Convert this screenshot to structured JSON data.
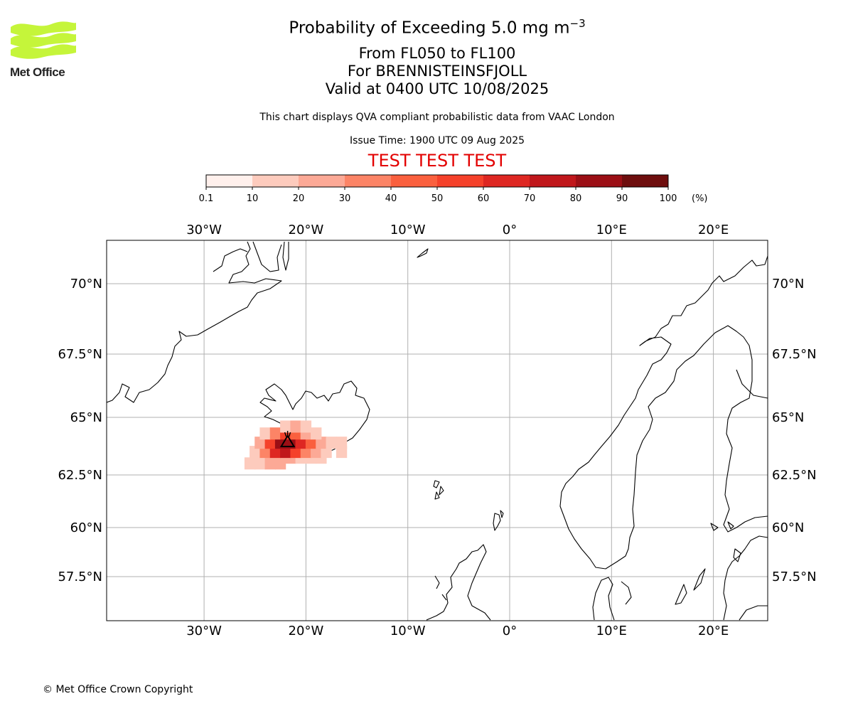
{
  "logo": {
    "text": "Met Office",
    "color": "#c5f53a"
  },
  "header": {
    "title_prefix": "Probability of Exceeding 5.0 mg m",
    "title_sup": "−3",
    "levels": "From FL050 to FL100",
    "volcano": "For BRENNISTEINSFJOLL",
    "valid": "Valid at 0400 UTC 10/08/2025",
    "description": "This chart displays QVA compliant probabilistic data from VAAC London",
    "issue_time": "Issue Time: 1900 UTC 09 Aug 2025",
    "test_banner": "TEST TEST TEST",
    "test_color": "#e30000"
  },
  "colorbar": {
    "ticks": [
      "0.1",
      "10",
      "20",
      "30",
      "40",
      "50",
      "60",
      "70",
      "80",
      "90",
      "100"
    ],
    "unit": "(%)",
    "colors": [
      "#fff0ec",
      "#fdcbbd",
      "#fca996",
      "#fc8466",
      "#fa603e",
      "#f5412a",
      "#de2722",
      "#c0171b",
      "#9b0f15",
      "#6e0e0e"
    ]
  },
  "map": {
    "lon_range": [
      -39.5,
      25.3
    ],
    "lat_range": [
      55.5,
      72.0
    ],
    "lon_labels": [
      {
        "lon": -30,
        "label": "30°W"
      },
      {
        "lon": -20,
        "label": "20°W"
      },
      {
        "lon": -10,
        "label": "10°W"
      },
      {
        "lon": 0,
        "label": "0°"
      },
      {
        "lon": 10,
        "label": "10°E"
      },
      {
        "lon": 20,
        "label": "20°E"
      }
    ],
    "lat_labels": [
      {
        "lat": 70,
        "label": "70°N"
      },
      {
        "lat": 67.5,
        "label": "67.5°N"
      },
      {
        "lat": 65,
        "label": "65°N"
      },
      {
        "lat": 62.5,
        "label": "62.5°N"
      },
      {
        "lat": 60,
        "label": "60°N"
      },
      {
        "lat": 57.5,
        "label": "57.5°N"
      }
    ],
    "volcano_location": {
      "lon": -21.8,
      "lat": 63.92
    },
    "probability_cells": [
      {
        "lon": -25.5,
        "lat": 63.0,
        "level": 1
      },
      {
        "lon": -24.5,
        "lat": 63.0,
        "level": 1
      },
      {
        "lon": -23.5,
        "lat": 63.0,
        "level": 2
      },
      {
        "lon": -22.5,
        "lat": 63.0,
        "level": 2
      },
      {
        "lon": -21.5,
        "lat": 63.25,
        "level": 2
      },
      {
        "lon": -20.5,
        "lat": 63.25,
        "level": 1
      },
      {
        "lon": -19.5,
        "lat": 63.25,
        "level": 1
      },
      {
        "lon": -18.5,
        "lat": 63.25,
        "level": 1
      },
      {
        "lon": -25.0,
        "lat": 63.5,
        "level": 1
      },
      {
        "lon": -24.0,
        "lat": 63.5,
        "level": 3
      },
      {
        "lon": -23.0,
        "lat": 63.5,
        "level": 6
      },
      {
        "lon": -22.0,
        "lat": 63.5,
        "level": 7
      },
      {
        "lon": -21.0,
        "lat": 63.5,
        "level": 5
      },
      {
        "lon": -20.0,
        "lat": 63.5,
        "level": 3
      },
      {
        "lon": -19.0,
        "lat": 63.5,
        "level": 2
      },
      {
        "lon": -18.0,
        "lat": 63.5,
        "level": 1
      },
      {
        "lon": -16.5,
        "lat": 63.5,
        "level": 1
      },
      {
        "lon": -24.5,
        "lat": 63.9,
        "level": 2
      },
      {
        "lon": -23.5,
        "lat": 63.9,
        "level": 5
      },
      {
        "lon": -22.5,
        "lat": 63.9,
        "level": 8
      },
      {
        "lon": -21.5,
        "lat": 63.9,
        "level": 8
      },
      {
        "lon": -20.5,
        "lat": 63.9,
        "level": 6
      },
      {
        "lon": -19.5,
        "lat": 63.9,
        "level": 4
      },
      {
        "lon": -18.5,
        "lat": 63.9,
        "level": 2
      },
      {
        "lon": -17.5,
        "lat": 63.9,
        "level": 1
      },
      {
        "lon": -16.5,
        "lat": 63.9,
        "level": 1
      },
      {
        "lon": -24.0,
        "lat": 64.3,
        "level": 1
      },
      {
        "lon": -23.0,
        "lat": 64.3,
        "level": 3
      },
      {
        "lon": -22.0,
        "lat": 64.3,
        "level": 5
      },
      {
        "lon": -21.0,
        "lat": 64.3,
        "level": 4
      },
      {
        "lon": -20.0,
        "lat": 64.3,
        "level": 2
      },
      {
        "lon": -19.0,
        "lat": 64.3,
        "level": 1
      },
      {
        "lon": -22.0,
        "lat": 64.6,
        "level": 1
      },
      {
        "lon": -21.0,
        "lat": 64.6,
        "level": 2
      },
      {
        "lon": -20.0,
        "lat": 64.6,
        "level": 1
      }
    ]
  },
  "footer": {
    "copyright": "© Met Office Crown Copyright"
  }
}
